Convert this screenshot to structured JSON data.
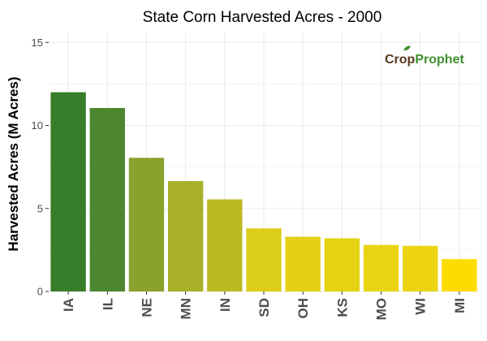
{
  "chart_data": {
    "type": "bar",
    "title": "State Corn Harvested Acres - 2000",
    "xlabel": "",
    "ylabel": "Harvested Acres (M Acres)",
    "categories": [
      "IA",
      "IL",
      "NE",
      "MN",
      "IN",
      "SD",
      "OH",
      "KS",
      "MO",
      "WI",
      "MI"
    ],
    "values": [
      12.0,
      11.05,
      8.05,
      6.65,
      5.55,
      3.8,
      3.3,
      3.2,
      2.8,
      2.75,
      1.95
    ],
    "colors": [
      "#377d2a",
      "#4c862e",
      "#89a12d",
      "#a8b02a",
      "#bdb923",
      "#dccd18",
      "#e4d014",
      "#e6d212",
      "#ead412",
      "#ecd411",
      "#ffdc00"
    ],
    "yticks": [
      0,
      5,
      10,
      15
    ],
    "ylim": [
      0,
      15.6
    ],
    "grid": true,
    "legend": "none"
  },
  "logo": {
    "part1": "Crop",
    "part2": "Prophet"
  },
  "colors": {
    "gridline": "#ebebeb",
    "axis_text": "#4d4d4d",
    "logo_brown": "#5a3a1e",
    "logo_green": "#3f8f2f"
  }
}
